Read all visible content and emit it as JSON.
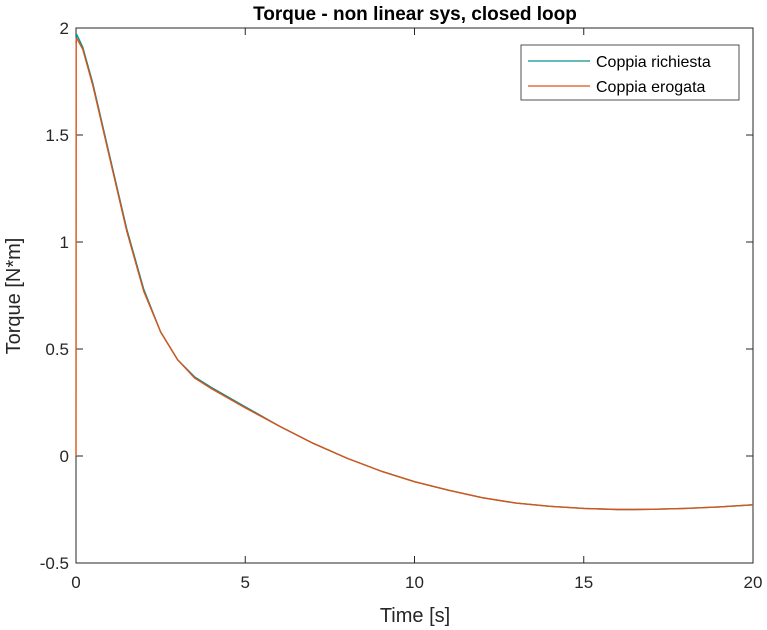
{
  "chart_data": {
    "type": "line",
    "title": "Torque - non linear sys, closed loop",
    "xlabel": "Time [s]",
    "ylabel": "Torque [N*m]",
    "xlim": [
      0,
      20
    ],
    "ylim": [
      -0.5,
      2
    ],
    "xticks": [
      0,
      5,
      10,
      15,
      20
    ],
    "yticks": [
      -0.5,
      0,
      0.5,
      1,
      1.5,
      2
    ],
    "xtick_labels": [
      "0",
      "5",
      "10",
      "15",
      "20"
    ],
    "ytick_labels": [
      "-0.5",
      "0",
      "0.5",
      "1",
      "1.5",
      "2"
    ],
    "grid": false,
    "legend_position": "top-right",
    "series": [
      {
        "name": "Coppia richiesta",
        "color": "#0b8f8f",
        "x": [
          0,
          0.02,
          0.2,
          0.5,
          1,
          1.5,
          2,
          2.5,
          3,
          3.5,
          4,
          5,
          6,
          7,
          8,
          9,
          10,
          11,
          12,
          13,
          14,
          15,
          16,
          16.5,
          17,
          18,
          19,
          20
        ],
        "y": [
          1.93,
          1.97,
          1.91,
          1.74,
          1.4,
          1.06,
          0.78,
          0.58,
          0.45,
          0.37,
          0.32,
          0.23,
          0.14,
          0.06,
          -0.01,
          -0.07,
          -0.12,
          -0.16,
          -0.195,
          -0.22,
          -0.235,
          -0.245,
          -0.25,
          -0.25,
          -0.249,
          -0.245,
          -0.238,
          -0.228
        ]
      },
      {
        "name": "Coppia erogata",
        "color": "#d95319",
        "x": [
          0,
          0.005,
          0.03,
          0.2,
          0.5,
          1,
          1.5,
          2,
          2.5,
          3,
          3.5,
          4,
          5,
          6,
          7,
          8,
          9,
          10,
          11,
          12,
          13,
          14,
          15,
          16,
          16.5,
          17,
          18,
          19,
          20
        ],
        "y": [
          0,
          1.95,
          1.95,
          1.9,
          1.73,
          1.39,
          1.05,
          0.77,
          0.58,
          0.45,
          0.365,
          0.315,
          0.225,
          0.14,
          0.06,
          -0.01,
          -0.07,
          -0.12,
          -0.16,
          -0.195,
          -0.22,
          -0.235,
          -0.245,
          -0.25,
          -0.25,
          -0.249,
          -0.245,
          -0.238,
          -0.228
        ]
      }
    ]
  }
}
